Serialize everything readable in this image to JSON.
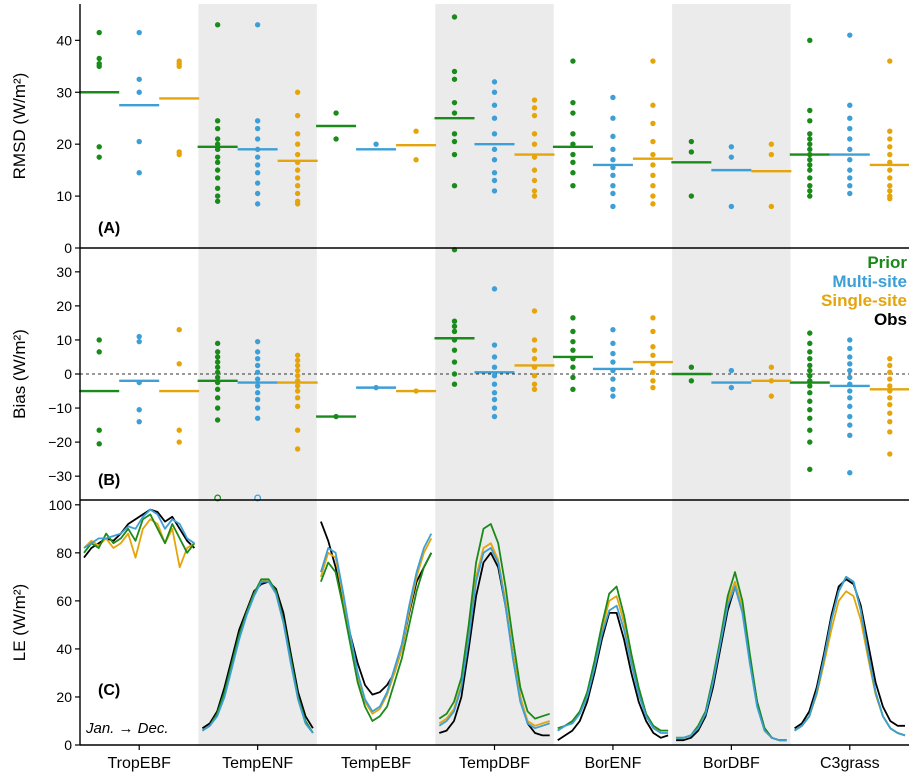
{
  "colors": {
    "prior": "#1a8a1a",
    "multi": "#3d9fd6",
    "single": "#e5a50a",
    "obs": "#000000",
    "shade": "#ebebeb"
  },
  "chart_data": [
    {
      "type": "scatter",
      "panel_label": "(A)",
      "ylabel": "RMSD (W/m²)",
      "ylim": [
        0,
        47
      ],
      "yticks": [
        0,
        10,
        20,
        30,
        40
      ],
      "categories": [
        "TropEBF",
        "TempENF",
        "TempEBF",
        "TempDBF",
        "BorENF",
        "BorDBF",
        "C3grass"
      ],
      "shaded_categories": [
        "TempENF",
        "TempDBF",
        "BorDBF"
      ],
      "series": [
        {
          "name": "Prior",
          "means": [
            30.0,
            19.5,
            23.5,
            25.0,
            19.5,
            16.5,
            18.0
          ],
          "points": [
            [
              41.5,
              36.5,
              35.5,
              19.5,
              17.5,
              35.0
            ],
            [
              43.0,
              24.5,
              23.0,
              21.0,
              20.0,
              19.0,
              17.5,
              16.5,
              15.0,
              13.5,
              11.5,
              10.0,
              9.0
            ],
            [
              26.0,
              21.0
            ],
            [
              44.5,
              34.0,
              32.5,
              28.0,
              26.0,
              22.0,
              20.5,
              18.0,
              12.0
            ],
            [
              36.0,
              28.0,
              26.0,
              22.0,
              20.0,
              18.0,
              16.5,
              14.5,
              12.0
            ],
            [
              20.5,
              18.5,
              10.0
            ],
            [
              40.0,
              26.5,
              24.5,
              22.0,
              21.0,
              20.0,
              19.0,
              18.0,
              17.0,
              16.0,
              15.0,
              13.5,
              12.0,
              11.0,
              10.0
            ]
          ]
        },
        {
          "name": "Multi-site",
          "means": [
            27.5,
            19.0,
            19.0,
            20.0,
            16.0,
            15.0,
            18.0
          ],
          "points": [
            [
              41.5,
              32.5,
              30.0,
              20.5,
              14.5
            ],
            [
              43.0,
              24.5,
              23.0,
              21.0,
              19.0,
              17.5,
              16.0,
              14.5,
              12.5,
              10.5,
              8.5
            ],
            [
              20.0
            ],
            [
              32.0,
              30.0,
              27.5,
              25.0,
              22.0,
              19.0,
              17.0,
              14.5,
              13.0,
              11.0
            ],
            [
              29.0,
              25.0,
              21.5,
              19.0,
              17.0,
              15.5,
              14.0,
              12.0,
              10.5,
              8.0
            ],
            [
              19.5,
              17.5,
              8.0
            ],
            [
              41.0,
              27.5,
              25.0,
              23.0,
              21.0,
              19.0,
              17.0,
              15.0,
              13.5,
              12.0,
              10.5
            ]
          ]
        },
        {
          "name": "Single-site",
          "means": [
            28.8,
            16.8,
            19.8,
            18.0,
            17.2,
            14.8,
            16.0
          ],
          "points": [
            [
              36.0,
              35.5,
              35.0,
              18.5,
              18.0
            ],
            [
              30.0,
              25.5,
              22.0,
              20.0,
              18.0,
              16.5,
              15.0,
              13.5,
              12.0,
              10.5,
              9.0,
              8.5
            ],
            [
              22.5,
              17.0
            ],
            [
              28.5,
              27.0,
              25.5,
              22.0,
              20.0,
              17.5,
              15.0,
              13.0,
              11.0,
              10.0
            ],
            [
              36.0,
              27.5,
              24.0,
              20.5,
              18.0,
              16.0,
              14.0,
              12.0,
              10.0,
              8.5
            ],
            [
              20.0,
              18.0,
              8.0
            ],
            [
              36.0,
              22.5,
              21.0,
              19.5,
              18.0,
              16.5,
              15.0,
              13.5,
              12.0,
              11.0,
              10.0,
              9.5
            ]
          ]
        }
      ]
    },
    {
      "type": "scatter",
      "panel_label": "(B)",
      "ylabel": "Bias (W/m²)",
      "ylim": [
        -37,
        37
      ],
      "yticks": [
        -30,
        -20,
        -10,
        0,
        10,
        20,
        30
      ],
      "zero_line": true,
      "categories": [
        "TropEBF",
        "TempENF",
        "TempEBF",
        "TempDBF",
        "BorENF",
        "BorDBF",
        "C3grass"
      ],
      "legend": [
        "Prior",
        "Multi-site",
        "Single-site",
        "Obs"
      ],
      "legend_position": "top-right",
      "series": [
        {
          "name": "Prior",
          "means": [
            -5.0,
            -2.0,
            -12.5,
            10.5,
            5.0,
            0.0,
            -2.5
          ],
          "points": [
            [
              10.0,
              6.5,
              -16.5,
              -20.5
            ],
            [
              9.0,
              6.5,
              5.0,
              3.5,
              2.0,
              0.5,
              -1.0,
              -2.5,
              -4.5,
              -7.0,
              -10.0,
              -13.5,
              -36.5
            ],
            [
              -12.5
            ],
            [
              36.5,
              15.5,
              14.0,
              12.5,
              10.0,
              7.0,
              3.5,
              0.0,
              -3.0
            ],
            [
              16.5,
              12.5,
              9.5,
              7.0,
              4.5,
              2.0,
              -1.0,
              -4.5
            ],
            [
              2.0,
              -2.0
            ],
            [
              12.0,
              9.0,
              6.5,
              4.5,
              2.5,
              1.0,
              -0.5,
              -2.0,
              -3.5,
              -5.5,
              -8.0,
              -10.5,
              -13.0,
              -16.5,
              -20.0,
              -28.0
            ]
          ]
        },
        {
          "name": "Multi-site",
          "means": [
            -2.0,
            -2.5,
            -4.0,
            0.5,
            1.5,
            -2.5,
            -3.5
          ],
          "points": [
            [
              11.0,
              9.5,
              -2.5,
              -10.5,
              -14.0
            ],
            [
              9.5,
              6.5,
              4.5,
              2.5,
              0.5,
              -1.5,
              -3.5,
              -5.5,
              -7.5,
              -10.0,
              -13.0,
              -36.5
            ],
            [
              -4.0
            ],
            [
              25.0,
              8.5,
              5.0,
              2.0,
              -0.5,
              -3.0,
              -5.5,
              -7.5,
              -10.0,
              -12.5
            ],
            [
              13.0,
              9.0,
              6.0,
              3.5,
              1.0,
              -1.5,
              -4.5,
              -6.5
            ],
            [
              1.0,
              -4.0
            ],
            [
              10.0,
              7.5,
              5.0,
              3.0,
              1.0,
              -1.0,
              -3.0,
              -5.0,
              -7.0,
              -9.5,
              -12.5,
              -15.0,
              -18.0,
              -29.0
            ]
          ]
        },
        {
          "name": "Single-site",
          "means": [
            -5.0,
            -2.5,
            -5.0,
            2.5,
            3.5,
            -2.0,
            -4.5
          ],
          "points": [
            [
              13.0,
              3.0,
              -16.5,
              -20.0
            ],
            [
              5.5,
              4.0,
              2.5,
              1.0,
              -0.5,
              -2.0,
              -3.5,
              -5.0,
              -7.0,
              -9.5,
              -16.5,
              -22.0
            ],
            [
              -5.0
            ],
            [
              18.5,
              10.0,
              7.0,
              4.5,
              2.0,
              -0.5,
              -3.0,
              -4.5
            ],
            [
              16.5,
              12.5,
              8.0,
              5.5,
              3.0,
              0.5,
              -2.0,
              -4.0
            ],
            [
              2.0,
              -2.0,
              -6.5
            ],
            [
              4.5,
              2.5,
              0.5,
              -1.5,
              -3.5,
              -5.0,
              -7.0,
              -9.0,
              -11.5,
              -14.0,
              -17.0,
              -23.5
            ]
          ]
        }
      ]
    },
    {
      "type": "line",
      "panel_label": "(C)",
      "ylabel": "LE (W/m²)",
      "ylim": [
        0,
        102
      ],
      "yticks": [
        0,
        20,
        40,
        60,
        80,
        100
      ],
      "x_note": "Jan. → Dec.",
      "categories": [
        "TropEBF",
        "TempENF",
        "TempEBF",
        "TempDBF",
        "BorENF",
        "BorDBF",
        "C3grass"
      ],
      "series_names": [
        "Prior",
        "Multi-site",
        "Single-site",
        "Obs"
      ],
      "profiles": {
        "TropEBF": {
          "Obs": [
            78,
            82,
            84,
            86,
            85,
            88,
            92,
            94,
            96,
            98,
            97,
            93,
            95,
            90,
            85,
            82
          ],
          "Prior": [
            80,
            84,
            82,
            88,
            84,
            86,
            90,
            85,
            94,
            96,
            90,
            84,
            92,
            86,
            80,
            84
          ],
          "Multi-site": [
            82,
            84,
            86,
            86,
            87,
            88,
            91,
            90,
            95,
            98,
            96,
            90,
            94,
            92,
            86,
            84
          ],
          "Single-site": [
            82,
            85,
            83,
            86,
            82,
            84,
            88,
            78,
            90,
            94,
            92,
            84,
            90,
            74,
            82,
            84
          ]
        },
        "TempENF": {
          "Obs": [
            7,
            9,
            14,
            24,
            36,
            48,
            56,
            64,
            67,
            68,
            65,
            55,
            38,
            22,
            12,
            7
          ],
          "Prior": [
            6,
            8,
            13,
            22,
            34,
            46,
            55,
            63,
            69,
            69,
            64,
            52,
            36,
            20,
            10,
            5
          ],
          "Multi-site": [
            6,
            8,
            12,
            20,
            32,
            44,
            54,
            62,
            68,
            68,
            63,
            51,
            34,
            19,
            9,
            5
          ],
          "Single-site": [
            6,
            8,
            13,
            21,
            33,
            45,
            55,
            63,
            69,
            68,
            63,
            51,
            35,
            19,
            9,
            5
          ]
        },
        "TempEBF": {
          "Obs": [
            93,
            85,
            74,
            60,
            46,
            34,
            25,
            21,
            22,
            25,
            30,
            40,
            55,
            68,
            74,
            80
          ],
          "Prior": [
            68,
            76,
            72,
            58,
            42,
            26,
            16,
            10,
            12,
            16,
            26,
            36,
            50,
            64,
            74,
            80
          ],
          "Multi-site": [
            72,
            82,
            80,
            64,
            46,
            30,
            19,
            14,
            16,
            22,
            32,
            42,
            58,
            72,
            82,
            88
          ],
          "Single-site": [
            70,
            80,
            78,
            62,
            44,
            28,
            18,
            13,
            15,
            21,
            30,
            40,
            56,
            70,
            80,
            86
          ]
        },
        "TempDBF": {
          "Obs": [
            5,
            6,
            10,
            20,
            40,
            62,
            76,
            80,
            74,
            58,
            38,
            20,
            9,
            5,
            4,
            4
          ],
          "Prior": [
            11,
            13,
            18,
            28,
            50,
            76,
            90,
            92,
            84,
            66,
            44,
            24,
            14,
            11,
            12,
            13
          ],
          "Multi-site": [
            8,
            10,
            14,
            24,
            44,
            68,
            80,
            82,
            76,
            58,
            36,
            18,
            9,
            7,
            8,
            9
          ],
          "Single-site": [
            9,
            11,
            15,
            25,
            46,
            70,
            82,
            84,
            77,
            60,
            38,
            20,
            10,
            8,
            9,
            10
          ]
        },
        "BorENF": {
          "Obs": [
            2,
            4,
            6,
            10,
            18,
            30,
            44,
            55,
            55,
            44,
            30,
            18,
            10,
            5,
            3,
            4
          ],
          "Prior": [
            7,
            8,
            10,
            14,
            22,
            35,
            50,
            63,
            66,
            54,
            38,
            24,
            13,
            8,
            6,
            6
          ],
          "Multi-site": [
            6,
            8,
            9,
            13,
            20,
            32,
            46,
            56,
            58,
            48,
            34,
            21,
            12,
            7,
            5,
            5
          ],
          "Single-site": [
            6,
            8,
            10,
            14,
            21,
            34,
            48,
            60,
            62,
            51,
            36,
            22,
            12,
            7,
            6,
            6
          ]
        },
        "BorDBF": {
          "Obs": [
            2,
            2,
            3,
            6,
            12,
            24,
            40,
            56,
            66,
            56,
            36,
            18,
            7,
            3,
            2,
            2
          ],
          "Prior": [
            3,
            3,
            4,
            8,
            14,
            28,
            44,
            62,
            72,
            60,
            38,
            18,
            7,
            3,
            2,
            2
          ],
          "Multi-site": [
            3,
            3,
            4,
            7,
            13,
            26,
            42,
            58,
            66,
            55,
            34,
            16,
            6,
            3,
            2,
            2
          ],
          "Single-site": [
            3,
            3,
            4,
            8,
            14,
            27,
            43,
            60,
            68,
            57,
            35,
            17,
            6,
            3,
            2,
            2
          ]
        },
        "C3grass": {
          "Obs": [
            7,
            9,
            14,
            24,
            38,
            54,
            66,
            69,
            67,
            58,
            42,
            26,
            16,
            10,
            8,
            8
          ],
          "Prior": [
            6,
            8,
            12,
            22,
            36,
            52,
            64,
            70,
            68,
            56,
            38,
            22,
            12,
            7,
            5,
            4
          ],
          "Multi-site": [
            6,
            8,
            12,
            22,
            36,
            52,
            64,
            70,
            68,
            56,
            38,
            22,
            12,
            7,
            5,
            4
          ],
          "Single-site": [
            6,
            8,
            12,
            21,
            34,
            48,
            60,
            64,
            62,
            52,
            36,
            21,
            12,
            7,
            5,
            4
          ]
        }
      }
    }
  ]
}
